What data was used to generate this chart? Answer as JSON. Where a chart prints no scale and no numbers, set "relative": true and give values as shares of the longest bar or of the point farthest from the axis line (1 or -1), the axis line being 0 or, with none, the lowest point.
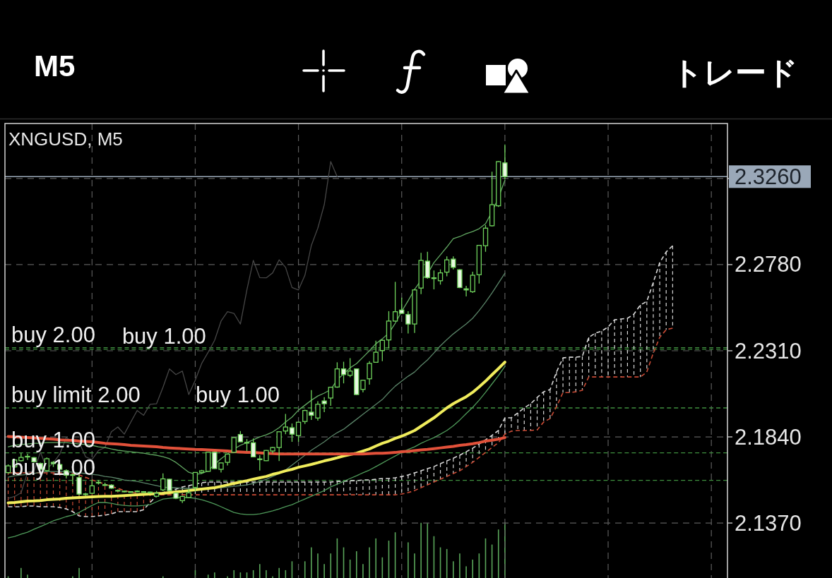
{
  "chart_data": [
    {
      "type": "candlestick",
      "title": "XNGUSD, M5",
      "annotations": [
        "M5",
        "トレード",
        {
          "text": "buy 1.00",
          "y": 2.1998
        }
      ],
      "categories": [
        null,
        null,
        null,
        null,
        null,
        null,
        null,
        null,
        null,
        null,
        null,
        null,
        null,
        null,
        null,
        null,
        null,
        null,
        null,
        null,
        null,
        null,
        null,
        null,
        null,
        null,
        null,
        null,
        null,
        null,
        null,
        null,
        null,
        null,
        null,
        null,
        null,
        null,
        null,
        null,
        null,
        null,
        null,
        null,
        null,
        null,
        null,
        null,
        null,
        null,
        null,
        null,
        null,
        null,
        null,
        null,
        null,
        null,
        null,
        null,
        null,
        null,
        null,
        null,
        null,
        null,
        null,
        null,
        null,
        null,
        null,
        null,
        null,
        null,
        null,
        null,
        null,
        null,
        null,
        null,
        null,
        null,
        null,
        null,
        null,
        null,
        null,
        null,
        null,
        null,
        null,
        null,
        null,
        null,
        null,
        null,
        null,
        null,
        null,
        null,
        null,
        null,
        null,
        null,
        null,
        null,
        null,
        null,
        null,
        null,
        null,
        null
      ],
      "color": "#6fd35c",
      "ohlc": [
        [
          2.1645,
          2.169,
          2.164,
          2.1682
        ],
        [
          2.1676,
          2.172,
          2.167,
          2.1714
        ],
        [
          2.171,
          2.1753,
          2.1705,
          2.1728
        ],
        [
          2.1732,
          2.1748,
          2.1714,
          2.1734
        ],
        [
          2.1727,
          2.173,
          2.17,
          2.1704
        ],
        [
          2.1695,
          2.17,
          2.166,
          2.1663
        ],
        [
          2.1656,
          2.1728,
          2.165,
          2.1721
        ],
        [
          2.1701,
          2.1708,
          2.1676,
          2.1694
        ],
        [
          2.1689,
          2.1695,
          2.166,
          2.1663
        ],
        [
          2.1656,
          2.1663,
          2.1613,
          2.1631
        ],
        [
          2.163,
          2.164,
          2.1582,
          2.1634
        ],
        [
          2.1618,
          2.1634,
          2.1521,
          2.1528
        ],
        [
          2.1527,
          2.1535,
          2.152,
          2.1529
        ],
        [
          2.1532,
          2.1605,
          2.1528,
          2.1573
        ],
        [
          2.159,
          2.1605,
          2.158,
          2.1592
        ],
        [
          2.1579,
          2.159,
          2.1572,
          2.1577
        ],
        [
          2.1577,
          2.1582,
          2.1556,
          2.156
        ],
        [
          2.1546,
          2.155,
          2.1543,
          2.1548
        ],
        [
          2.1542,
          2.1546,
          2.1539,
          2.1544
        ],
        [
          2.1541,
          2.1544,
          2.1536,
          2.1539
        ],
        [
          2.1542,
          2.1548,
          2.1538,
          2.1544
        ],
        [
          2.1541,
          2.1544,
          2.1536,
          2.1539
        ],
        [
          2.1537,
          2.1541,
          2.1533,
          2.1539
        ],
        [
          2.1516,
          2.1545,
          2.151,
          2.1532
        ],
        [
          2.1551,
          2.1641,
          2.1544,
          2.1611
        ],
        [
          2.1609,
          2.1611,
          2.1545,
          2.1547
        ],
        [
          2.1534,
          2.1536,
          2.15,
          2.1505
        ],
        [
          2.1492,
          2.152,
          2.1479,
          2.1515
        ],
        [
          2.1509,
          2.1556,
          2.1505,
          2.1535
        ],
        [
          2.1564,
          2.1648,
          2.1541,
          2.1646
        ],
        [
          2.1646,
          2.166,
          2.164,
          2.1655
        ],
        [
          2.1652,
          2.1756,
          2.165,
          2.1756
        ],
        [
          2.1756,
          2.1758,
          2.1665,
          2.1667
        ],
        [
          2.1663,
          2.17,
          2.1646,
          2.1698
        ],
        [
          2.1701,
          2.1746,
          2.1684,
          2.1746
        ],
        [
          2.1756,
          2.1836,
          2.1754,
          2.1836
        ],
        [
          2.1853,
          2.1872,
          2.1812,
          2.1813
        ],
        [
          2.1806,
          2.1828,
          2.1762,
          2.181
        ],
        [
          2.1808,
          2.1832,
          2.173,
          2.1731
        ],
        [
          2.172,
          2.174,
          2.1656,
          2.1716
        ],
        [
          2.171,
          2.1768,
          2.1708,
          2.1766
        ],
        [
          2.1763,
          2.1785,
          2.175,
          2.1782
        ],
        [
          2.1782,
          2.187,
          2.1708,
          2.1868
        ],
        [
          2.1872,
          2.1965,
          2.1855,
          2.1894
        ],
        [
          2.189,
          2.1913,
          2.1813,
          2.1855
        ],
        [
          2.1847,
          2.1922,
          2.1813,
          2.192
        ],
        [
          2.1924,
          2.1988,
          2.191,
          2.1984
        ],
        [
          2.1975,
          2.2095,
          2.1933,
          2.1958
        ],
        [
          2.1943,
          2.2035,
          2.1929,
          2.2018
        ],
        [
          2.2036,
          2.2057,
          2.1975,
          2.2021
        ],
        [
          2.2052,
          2.2113,
          2.201,
          2.2111
        ],
        [
          2.2112,
          2.2247,
          2.2108,
          2.2211
        ],
        [
          2.2211,
          2.225,
          2.2132,
          2.218
        ],
        [
          2.2176,
          2.227,
          2.2166,
          2.2199
        ],
        [
          2.2211,
          2.2214,
          2.2068,
          2.2071
        ],
        [
          2.2099,
          2.2152,
          2.2083,
          2.2149
        ],
        [
          2.2157,
          2.2253,
          2.2125,
          2.2241
        ],
        [
          2.2247,
          2.2365,
          2.2245,
          2.2302
        ],
        [
          2.2311,
          2.237,
          2.2253,
          2.2367
        ],
        [
          2.2369,
          2.2526,
          2.2324,
          2.2472
        ],
        [
          2.2472,
          2.2686,
          2.2469,
          2.2523
        ],
        [
          2.2532,
          2.26,
          2.251,
          2.2514
        ],
        [
          2.2508,
          2.2526,
          2.2404,
          2.2456
        ],
        [
          2.2456,
          2.2648,
          2.2407,
          2.2642
        ],
        [
          2.2652,
          2.2844,
          2.2619,
          2.2803
        ],
        [
          2.2799,
          2.285,
          2.2703,
          2.2709
        ],
        [
          2.2704,
          2.2748,
          2.2645,
          2.2708
        ],
        [
          2.2692,
          2.2754,
          2.2671,
          2.2735
        ],
        [
          2.2739,
          2.2825,
          2.2716,
          2.2806
        ],
        [
          2.281,
          2.2825,
          2.2754,
          2.2765
        ],
        [
          2.2752,
          2.2756,
          2.2652,
          2.2655
        ],
        [
          2.2648,
          2.2664,
          2.2607,
          2.2642
        ],
        [
          2.2632,
          2.2741,
          2.2626,
          2.2722
        ],
        [
          2.2725,
          2.2888,
          2.2677,
          2.2885
        ],
        [
          2.2883,
          2.2996,
          2.285,
          2.2979
        ],
        [
          2.2992,
          2.3287,
          2.2988,
          2.3107
        ],
        [
          2.3101,
          2.3345,
          2.3095,
          2.3342
        ],
        [
          2.3335,
          2.3435,
          2.3245,
          2.326
        ],
        null,
        null,
        null,
        null,
        null,
        null,
        null,
        null,
        null,
        null,
        null,
        null,
        null,
        null,
        null,
        null,
        null,
        null,
        null,
        null,
        null,
        null,
        null,
        null,
        null,
        null,
        null,
        null,
        null,
        null,
        null,
        null,
        null,
        null
      ],
      "ylim": [
        2.107,
        2.355
      ],
      "yticks": [
        {
          "value": 2.137,
          "label": "2.1370"
        },
        {
          "value": 2.184,
          "label": "2.1840"
        },
        {
          "value": 2.231,
          "label": "2.2310"
        },
        {
          "value": 2.278,
          "label": "2.2780"
        },
        {
          "value": 2.325,
          "label": null
        }
      ],
      "tick_labels": "y",
      "grid": true,
      "ref_lines": [
        {
          "axis": "y",
          "value": 2.326,
          "label": "2.3260",
          "color": "#9aa8b8",
          "line_style": "solid"
        },
        {
          "axis": "y",
          "value": 2.2327,
          "label": "buy 2.00",
          "color": "#3f8f3f",
          "line_style": "dashed"
        },
        {
          "axis": "y",
          "value": 2.2318,
          "label": "buy 1.00",
          "color": "#3f8f3f",
          "line_style": "dashed"
        },
        {
          "axis": "y",
          "value": 2.1998,
          "label": "buy limit 2.00",
          "color": "#3f8f3f",
          "line_style": "dashed"
        },
        {
          "axis": "y",
          "value": 2.1753,
          "label": "buy 1.00",
          "color": "#3f8f3f",
          "line_style": "dashed"
        },
        {
          "axis": "y",
          "value": 2.1603,
          "label": "buy 1.00",
          "color": "#3f8f3f",
          "line_style": "dashed"
        }
      ],
      "series": [
        {
          "type": "line",
          "color": "#e2513a",
          "values": [
            2.1842,
            2.184,
            2.1838,
            2.1836,
            2.1834,
            2.1832,
            2.183,
            2.1828,
            2.1824,
            2.1822,
            2.1821,
            2.1817,
            2.1815,
            2.1813,
            2.1809,
            2.1805,
            2.1803,
            2.1801,
            2.1798,
            2.1794,
            2.1792,
            2.179,
            2.1788,
            2.1786,
            2.1782,
            2.178,
            2.1778,
            2.1776,
            2.1774,
            2.1772,
            2.1771,
            2.1769,
            2.1767,
            2.1765,
            2.1763,
            2.1759,
            2.1757,
            2.1755,
            2.1755,
            2.1753,
            2.1751,
            2.1749,
            2.1747,
            2.1747,
            2.1747,
            2.1747,
            2.1747,
            2.1747,
            2.1747,
            2.1747,
            2.1747,
            2.1747,
            2.1747,
            2.1747,
            2.1747,
            2.1747,
            2.1749,
            2.1751,
            2.1751,
            2.1753,
            2.1755,
            2.1759,
            2.1761,
            2.1765,
            2.1769,
            2.1772,
            2.1776,
            2.178,
            2.1784,
            2.1788,
            2.1794,
            2.1798,
            2.1803,
            2.1809,
            2.1817,
            2.1822,
            2.1828,
            2.1836,
            null,
            null,
            null,
            null,
            null,
            null,
            null,
            null,
            null,
            null,
            null,
            null,
            null,
            null,
            null,
            null,
            null,
            null,
            null,
            null,
            null,
            null,
            null,
            null,
            null,
            null,
            null,
            null,
            null,
            null,
            null,
            null,
            null,
            null
          ]
        },
        {
          "type": "line",
          "color": "#f0ec5c",
          "values": [
            2.148,
            2.1482,
            2.1486,
            2.149,
            2.1491,
            2.1493,
            2.1497,
            2.1499,
            2.1501,
            2.1505,
            2.1507,
            2.1509,
            2.1511,
            2.1513,
            2.1515,
            2.1516,
            2.1516,
            2.1518,
            2.152,
            2.1522,
            2.1524,
            2.1526,
            2.1528,
            2.153,
            2.1532,
            2.1536,
            2.154,
            2.1543,
            2.1547,
            2.1551,
            2.1555,
            2.1559,
            2.1563,
            2.157,
            2.1578,
            2.1586,
            2.1594,
            2.1601,
            2.1609,
            2.1617,
            2.1624,
            2.1636,
            2.1644,
            2.1655,
            2.1663,
            2.1674,
            2.1682,
            2.169,
            2.1699,
            2.1709,
            2.1717,
            2.1726,
            2.1736,
            2.1744,
            2.1751,
            2.1763,
            2.1774,
            2.179,
            2.1805,
            2.1817,
            2.1832,
            2.1844,
            2.1859,
            2.1875,
            2.1898,
            2.1921,
            2.1944,
            2.1971,
            2.1998,
            2.2021,
            2.204,
            2.2059,
            2.2083,
            2.2113,
            2.2144,
            2.2179,
            2.2213,
            2.2248,
            null,
            null,
            null,
            null,
            null,
            null,
            null,
            null,
            null,
            null,
            null,
            null,
            null,
            null,
            null,
            null,
            null,
            null,
            null,
            null,
            null,
            null,
            null,
            null,
            null,
            null,
            null,
            null,
            null,
            null,
            null,
            null,
            null,
            null
          ]
        },
        {
          "type": "line",
          "color": "#62a862",
          "values": [
            2.1786,
            2.1794,
            2.1798,
            2.1801,
            2.1805,
            2.1805,
            2.1809,
            2.1809,
            2.1809,
            2.1809,
            2.1805,
            2.1801,
            2.1798,
            2.1794,
            2.1786,
            2.1782,
            2.1774,
            2.1767,
            2.1763,
            2.1759,
            2.1755,
            2.1751,
            2.1744,
            2.174,
            2.1732,
            2.1721,
            2.1701,
            2.1674,
            2.1647,
            2.1636,
            2.164,
            2.1655,
            2.169,
            2.1721,
            2.1747,
            2.1774,
            2.1794,
            2.1809,
            2.1824,
            2.184,
            2.1851,
            2.1867,
            2.189,
            2.1921,
            2.1948,
            2.1986,
            2.2013,
            2.204,
            2.2063,
            2.2079,
            2.2098,
            2.2152,
            2.2183,
            2.2217,
            2.224,
            2.2275,
            2.231,
            2.2348,
            2.2375,
            2.2406,
            2.246,
            2.2525,
            2.2583,
            2.2645,
            2.2695,
            2.2729,
            2.2791,
            2.2833,
            2.2876,
            2.2922,
            2.2933,
            2.2949,
            2.296,
            2.2976,
            2.3003,
            2.3068,
            2.3145,
            2.3241,
            null,
            null,
            null,
            null,
            null,
            null,
            null,
            null,
            null,
            null,
            null,
            null,
            null,
            null,
            null,
            null,
            null,
            null,
            null,
            null,
            null,
            null,
            null,
            null,
            null,
            null,
            null,
            null,
            null,
            null,
            null,
            null,
            null,
            null
          ]
        },
        {
          "type": "line",
          "color": "#5a8468",
          "values": [
            2.162,
            2.1628,
            2.1632,
            2.1636,
            2.164,
            2.1647,
            2.1651,
            2.1651,
            2.1651,
            2.1651,
            2.1647,
            2.1644,
            2.164,
            2.1636,
            2.1632,
            2.1624,
            2.162,
            2.1613,
            2.1605,
            2.1601,
            2.1597,
            2.1589,
            2.1582,
            2.1574,
            2.1566,
            2.1563,
            2.1563,
            2.1559,
            2.1559,
            2.1559,
            2.1559,
            2.1559,
            2.1559,
            2.1563,
            2.1566,
            2.157,
            2.1574,
            2.1578,
            2.1586,
            2.1597,
            2.1609,
            2.1624,
            2.164,
            2.1659,
            2.1686,
            2.1713,
            2.174,
            2.1767,
            2.179,
            2.1813,
            2.184,
            2.1863,
            2.1882,
            2.1909,
            2.1936,
            2.1963,
            2.199,
            2.2017,
            2.2044,
            2.2082,
            2.2117,
            2.2144,
            2.2171,
            2.2194,
            2.2229,
            2.226,
            2.2298,
            2.2337,
            2.2371,
            2.2402,
            2.2429,
            2.2456,
            2.2487,
            2.2529,
            2.2575,
            2.2625,
            2.2679,
            2.2733,
            null,
            null,
            null,
            null,
            null,
            null,
            null,
            null,
            null,
            null,
            null,
            null,
            null,
            null,
            null,
            null,
            null,
            null,
            null,
            null,
            null,
            null,
            null,
            null,
            null,
            null,
            null,
            null,
            null,
            null,
            null,
            null,
            null,
            null
          ]
        },
        {
          "type": "line",
          "color": "#4f9a5a",
          "values": [
            2.1289,
            2.1297,
            2.1309,
            2.132,
            2.1336,
            2.1351,
            2.1366,
            2.1382,
            2.1393,
            2.1405,
            2.1413,
            2.1428,
            2.1447,
            2.1466,
            2.1482,
            2.1482,
            2.1478,
            2.147,
            2.1466,
            2.1463,
            2.1463,
            2.1466,
            2.147,
            2.1486,
            2.1501,
            2.1505,
            2.1509,
            2.1509,
            2.1509,
            2.1505,
            2.1497,
            2.1486,
            2.1474,
            2.1459,
            2.1443,
            2.1428,
            2.142,
            2.1416,
            2.1416,
            2.142,
            2.1428,
            2.1436,
            2.1447,
            2.1459,
            2.147,
            2.1486,
            2.1501,
            2.1516,
            2.1532,
            2.1547,
            2.1567,
            2.1582,
            2.1597,
            2.1613,
            2.1628,
            2.1644,
            2.1659,
            2.1678,
            2.1697,
            2.1717,
            2.1736,
            2.1755,
            2.1771,
            2.1786,
            2.1805,
            2.1821,
            2.1836,
            2.1855,
            2.1875,
            2.1901,
            2.1932,
            2.1967,
            2.2001,
            2.204,
            2.2083,
            2.2129,
            2.2175,
            2.2225,
            null,
            null,
            null,
            null,
            null,
            null,
            null,
            null,
            null,
            null,
            null,
            null,
            null,
            null,
            null,
            null,
            null,
            null,
            null,
            null,
            null,
            null,
            null,
            null,
            null,
            null,
            null,
            null,
            null,
            null,
            null,
            null,
            null,
            null
          ]
        },
        {
          "type": "line",
          "color": "#474747",
          "values": [
            2.1505,
            2.1515,
            2.1535,
            2.1646,
            2.1655,
            2.1756,
            2.1667,
            2.1698,
            2.1746,
            2.1836,
            2.1813,
            2.181,
            2.1731,
            2.1716,
            2.1766,
            2.1782,
            2.1868,
            2.1894,
            2.1855,
            2.192,
            2.1984,
            2.1958,
            2.2018,
            2.2021,
            2.2111,
            2.2211,
            2.218,
            2.2199,
            2.2071,
            2.2149,
            2.2241,
            2.2302,
            2.2367,
            2.2472,
            2.2523,
            2.2514,
            2.2456,
            2.2642,
            2.2803,
            2.2709,
            2.2708,
            2.2735,
            2.2806,
            2.2765,
            2.2655,
            2.2642,
            2.2722,
            2.2885,
            2.2979,
            2.3107,
            2.3342,
            2.326,
            null,
            null,
            null,
            null,
            null,
            null,
            null,
            null,
            null,
            null,
            null,
            null,
            null,
            null,
            null,
            null,
            null,
            null,
            null,
            null,
            null,
            null,
            null,
            null,
            null,
            null,
            null,
            null,
            null,
            null,
            null,
            null,
            null,
            null,
            null,
            null,
            null,
            null,
            null,
            null,
            null,
            null,
            null,
            null,
            null,
            null,
            null,
            null,
            null,
            null,
            null,
            null,
            null,
            null,
            null,
            null,
            null,
            null,
            null,
            null
          ]
        },
        {
          "type": "line",
          "color": "#d8d8d8",
          "line_style": "dashed",
          "values": [
            2.1459,
            2.1459,
            2.1459,
            2.1463,
            2.1463,
            2.1459,
            2.1459,
            2.1459,
            2.1455,
            2.1447,
            2.1432,
            2.1409,
            2.1405,
            2.1405,
            2.1409,
            2.1413,
            2.142,
            2.1432,
            2.1432,
            2.1432,
            2.1432,
            2.1443,
            2.1482,
            2.152,
            2.1536,
            2.1547,
            2.1555,
            2.1567,
            2.1574,
            2.1582,
            2.159,
            2.1594,
            2.1594,
            2.1594,
            2.1594,
            2.1594,
            2.1594,
            2.1594,
            2.1594,
            2.1594,
            2.1594,
            2.1594,
            2.1594,
            2.1594,
            2.1594,
            2.1594,
            2.1594,
            2.1594,
            2.1594,
            2.1594,
            2.1594,
            2.1597,
            2.1597,
            2.1601,
            2.1601,
            2.1605,
            2.1605,
            2.1609,
            2.1613,
            2.1613,
            2.1617,
            2.1624,
            2.1632,
            2.1644,
            2.1655,
            2.1667,
            2.1678,
            2.1694,
            2.1709,
            2.1724,
            2.174,
            2.1759,
            2.1778,
            2.1801,
            2.1824,
            2.1848,
            2.1875,
            2.1944,
            2.1944,
            2.1971,
            2.1998,
            2.2021,
            2.2055,
            2.2086,
            2.2098,
            2.2194,
            2.2271,
            2.2275,
            2.2275,
            2.2279,
            2.2383,
            2.2406,
            2.2417,
            2.244,
            2.2479,
            2.2483,
            2.2487,
            2.251,
            2.256,
            2.2579,
            2.2683,
            2.2791,
            2.2849,
            2.2883,
            null,
            null,
            null,
            null,
            null,
            null,
            null,
            null
          ]
        },
        {
          "type": "line",
          "color": "#c94a34",
          "line_style": "dashed",
          "values": [
            2.1644,
            2.1644,
            2.1644,
            2.1644,
            2.1644,
            2.1644,
            2.1644,
            2.1644,
            2.1644,
            2.1644,
            2.164,
            2.1632,
            2.162,
            2.1605,
            2.1594,
            2.1582,
            2.157,
            2.1559,
            2.1547,
            2.154,
            2.1532,
            2.1528,
            2.1524,
            2.1524,
            2.1524,
            2.1524,
            2.1524,
            2.1524,
            2.1524,
            2.1524,
            2.1524,
            2.1524,
            2.1524,
            2.1524,
            2.1524,
            2.1524,
            2.1524,
            2.1524,
            2.1524,
            2.1524,
            2.1524,
            2.1524,
            2.1524,
            2.1524,
            2.1524,
            2.1524,
            2.1524,
            2.1524,
            2.1524,
            2.1524,
            2.1524,
            2.1524,
            2.1524,
            2.1524,
            2.1524,
            2.1524,
            2.1524,
            2.1524,
            2.1524,
            2.1524,
            2.1524,
            2.1528,
            2.1536,
            2.1547,
            2.1563,
            2.1578,
            2.1594,
            2.1609,
            2.1624,
            2.164,
            2.1655,
            2.1678,
            2.1701,
            2.1728,
            2.1755,
            2.1782,
            2.1809,
            2.1855,
            2.1871,
            2.1875,
            2.1875,
            2.1875,
            2.1878,
            2.1921,
            2.194,
            2.2005,
            2.2082,
            2.2082,
            2.2086,
            2.2094,
            2.2167,
            2.2167,
            2.2167,
            2.2167,
            2.2167,
            2.2167,
            2.2167,
            2.2167,
            2.2167,
            2.2194,
            2.2298,
            2.2383,
            2.2425,
            2.2433,
            null,
            null,
            null,
            null,
            null,
            null,
            null,
            null
          ]
        }
      ]
    },
    {
      "type": "bar",
      "relative": true,
      "color": "#5aa65a",
      "categories": [
        null,
        null,
        null,
        null,
        null,
        null,
        null,
        null,
        null,
        null,
        null,
        null,
        null,
        null,
        null,
        null,
        null,
        null,
        null,
        null,
        null,
        null,
        null,
        null,
        null,
        null,
        null,
        null,
        null,
        null,
        null,
        null,
        null,
        null,
        null,
        null,
        null,
        null,
        null,
        null,
        null,
        null,
        null,
        null,
        null,
        null,
        null,
        null,
        null,
        null,
        null,
        null,
        null,
        null,
        null,
        null,
        null,
        null,
        null,
        null,
        null,
        null,
        null,
        null,
        null,
        null,
        null,
        null,
        null,
        null,
        null,
        null,
        null,
        null,
        null,
        null,
        null,
        null,
        null,
        null,
        null,
        null,
        null,
        null,
        null,
        null,
        null,
        null,
        null,
        null,
        null,
        null,
        null,
        null,
        null,
        null,
        null,
        null,
        null,
        null,
        null,
        null,
        null,
        null,
        null,
        null,
        null,
        null,
        null,
        null,
        null,
        null
      ],
      "values": [
        0.03,
        null,
        0.18,
        0.06,
        null,
        null,
        null,
        null,
        null,
        null,
        0.03,
        0.18,
        null,
        null,
        null,
        null,
        null,
        null,
        null,
        null,
        null,
        null,
        null,
        null,
        0.03,
        null,
        null,
        null,
        null,
        0.14,
        null,
        0.06,
        0.1,
        null,
        0.03,
        0.14,
        0.1,
        0.1,
        0.14,
        0.25,
        0.14,
        0.03,
        0.18,
        0.14,
        0.3,
        null,
        0.3,
        0.55,
        0.44,
        0.25,
        0.44,
        0.71,
        0.55,
        0.33,
        0.48,
        0.25,
        0.55,
        0.71,
        0.37,
        0.67,
        0.82,
        null,
        0.64,
        0.44,
        0.99,
        0.99,
        0.75,
        0.55,
        0.52,
        0.3,
        0.44,
        0.21,
        0.33,
        0.44,
        0.71,
        0.6,
        0.87,
        1,
        null,
        null,
        null,
        null,
        null,
        null,
        null,
        null,
        null,
        null,
        null,
        null,
        null,
        null,
        null,
        null,
        null,
        null,
        null,
        null,
        null,
        null,
        null,
        null,
        null,
        null,
        null,
        null,
        null,
        null,
        null,
        null,
        null,
        null
      ]
    }
  ]
}
